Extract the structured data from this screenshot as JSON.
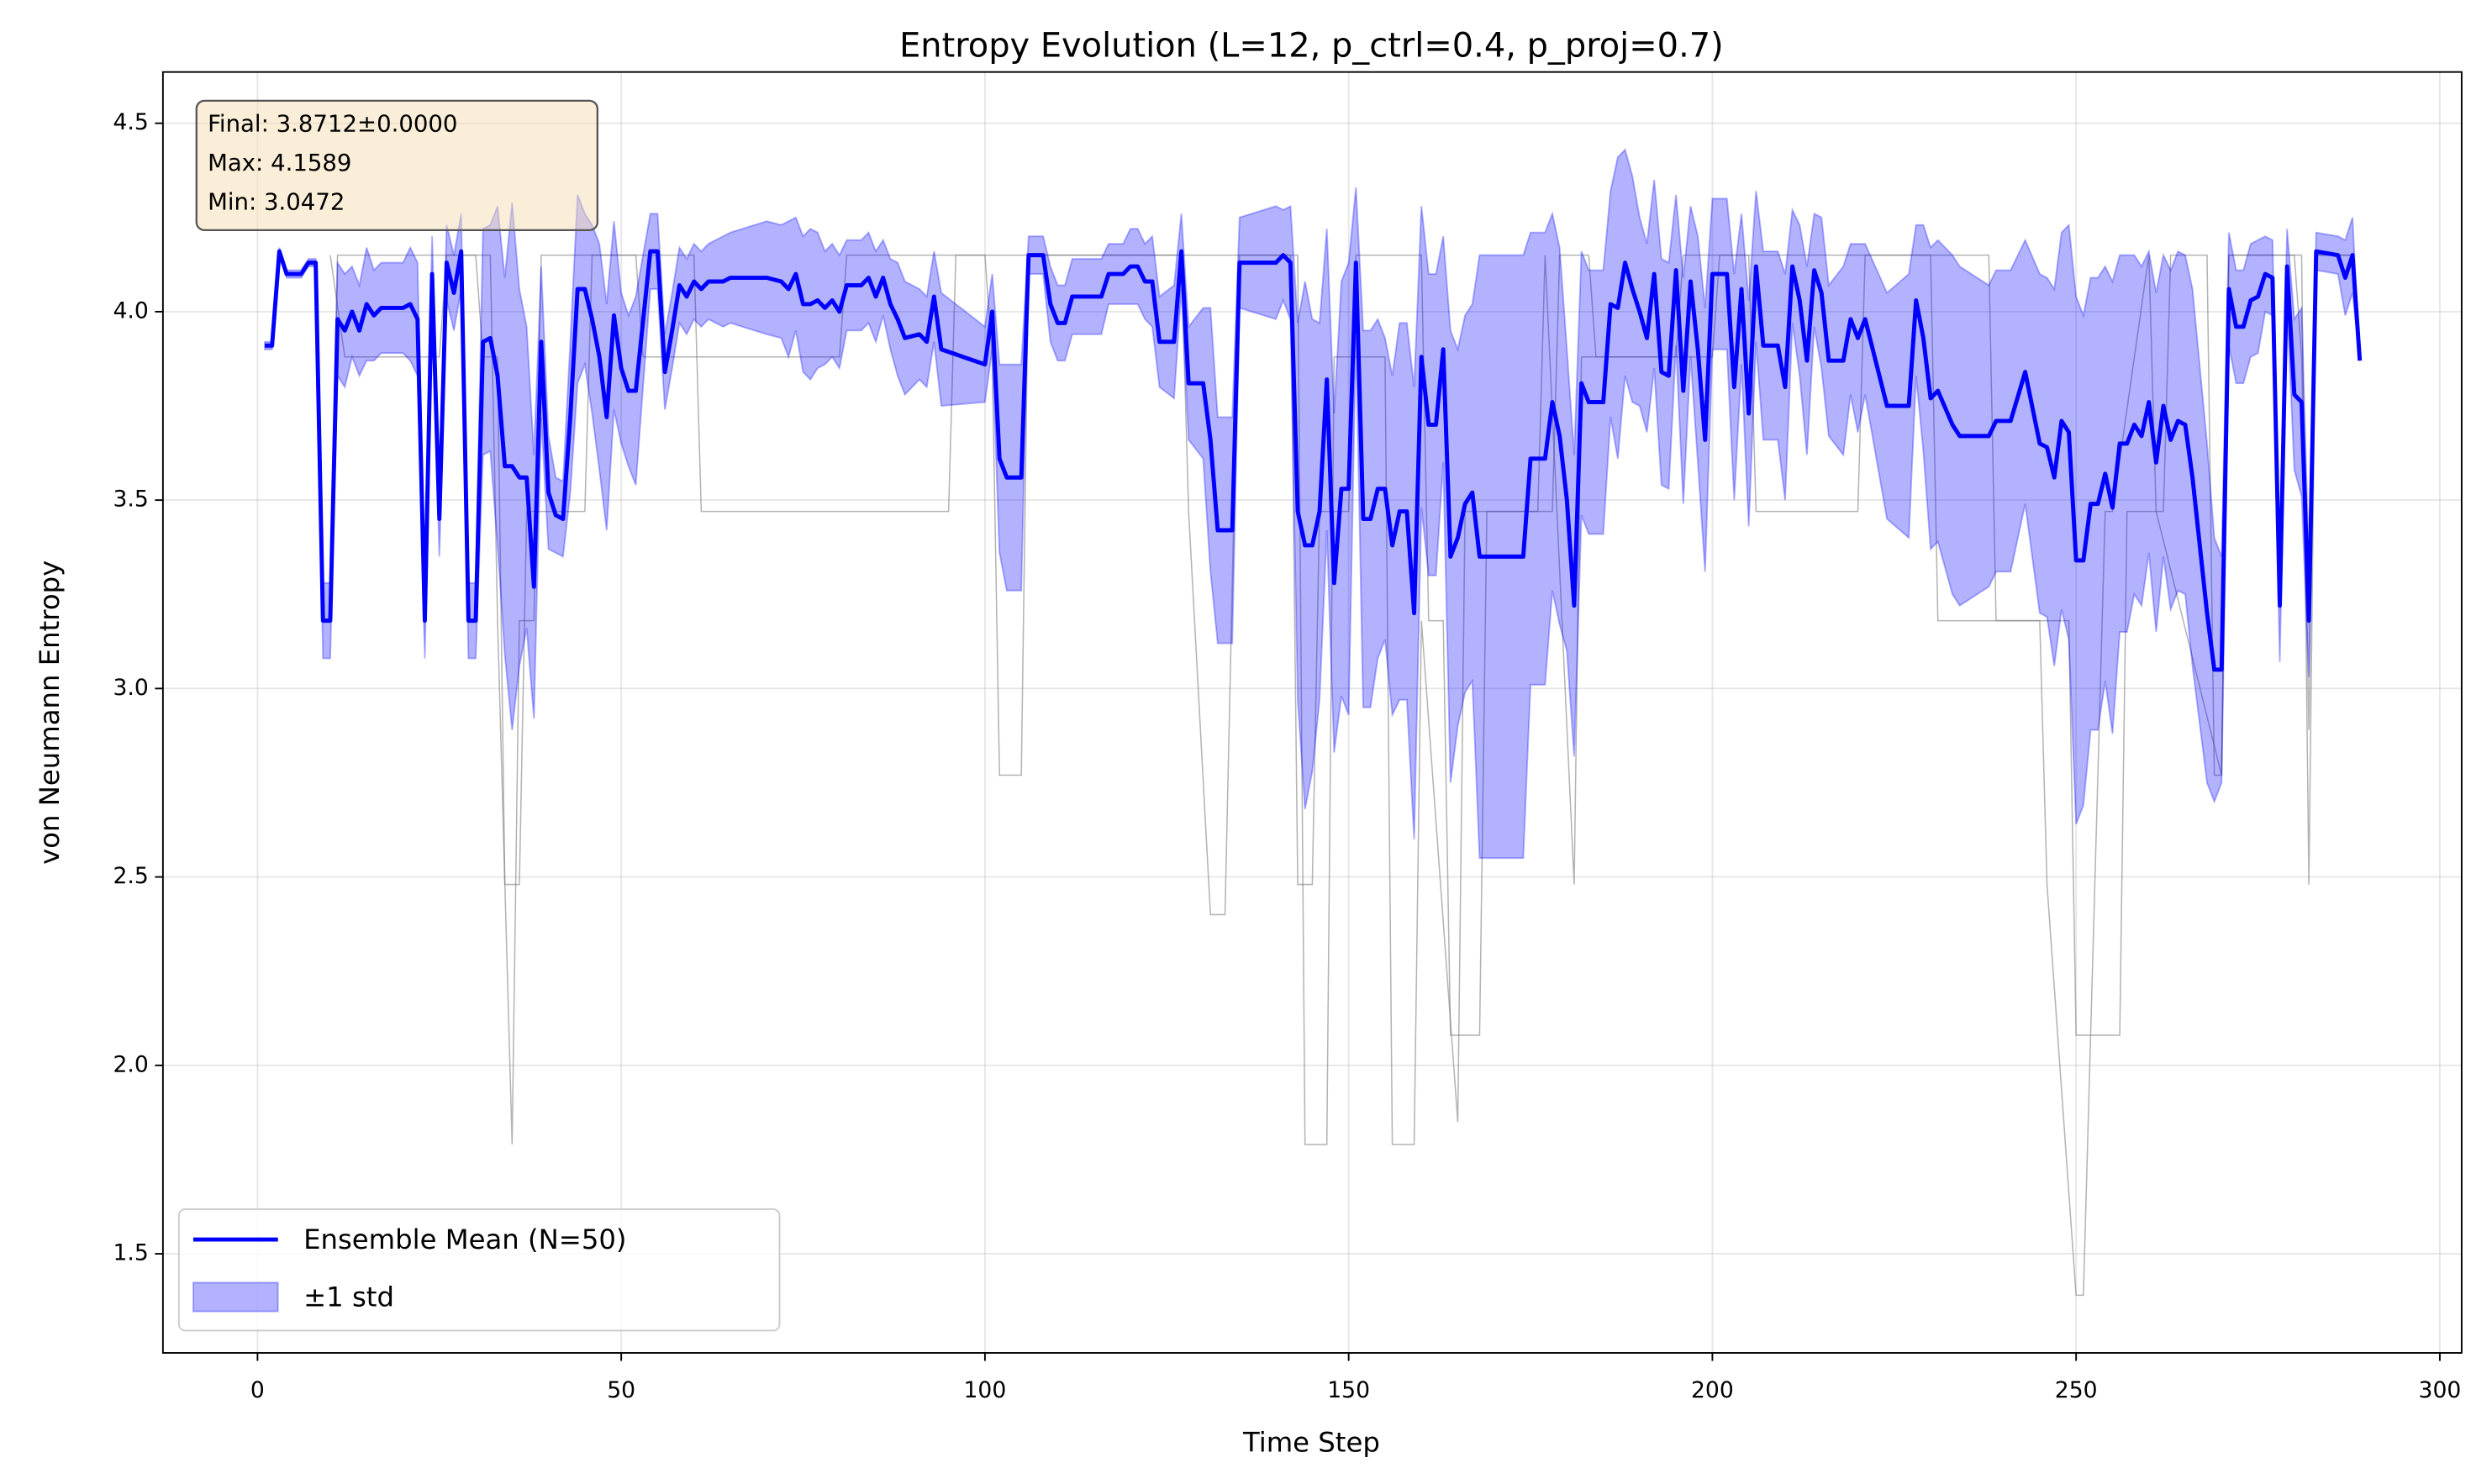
{
  "chart_data": {
    "type": "line",
    "title": "Entropy Evolution (L=12, p_ctrl=0.4, p_proj=0.7)",
    "xlabel": "Time Step",
    "ylabel": "von Neumann Entropy",
    "annotation": [
      "Final: 3.8712±0.0000",
      "Max: 4.1589",
      "Min: 3.0472"
    ],
    "legend": "lower left",
    "grid": true,
    "xlim": [
      -13,
      303
    ],
    "ylim": [
      1.237,
      4.636
    ],
    "xticks": [
      0,
      50,
      100,
      150,
      200,
      250,
      300
    ],
    "yticks": [
      1.5,
      {
        "value": 2,
        "label": "2.0"
      },
      2.5,
      {
        "value": 3,
        "label": "3.0"
      },
      3.5,
      {
        "value": 4,
        "label": "4.0"
      },
      4.5
    ],
    "x": [
      1,
      2,
      3,
      4,
      6,
      7,
      8,
      9,
      10,
      11,
      12,
      13,
      14,
      15,
      16,
      17,
      20,
      21,
      22,
      23,
      24,
      25,
      26,
      27,
      28,
      29,
      30,
      31,
      32,
      33,
      34,
      35,
      36,
      37,
      38,
      39,
      40,
      41,
      42,
      43,
      44,
      45,
      46,
      47,
      48,
      49,
      50,
      51,
      52,
      54,
      55,
      56,
      57,
      58,
      59,
      60,
      61,
      62,
      64,
      65,
      70,
      72,
      73,
      74,
      75,
      76,
      77,
      78,
      79,
      80,
      81,
      83,
      84,
      85,
      86,
      87,
      88,
      89,
      91,
      92,
      93,
      94,
      100,
      101,
      102,
      103,
      105,
      106,
      108,
      109,
      110,
      111,
      112,
      116,
      117,
      119,
      120,
      121,
      122,
      123,
      124,
      126,
      127,
      128,
      130,
      131,
      132,
      134,
      135,
      140,
      141,
      142,
      143,
      144,
      145,
      146,
      147,
      148,
      149,
      150,
      151,
      152,
      153,
      154,
      155,
      156,
      157,
      158,
      159,
      160,
      161,
      162,
      163,
      164,
      165,
      166,
      167,
      168,
      174,
      175,
      177,
      178,
      179,
      180,
      181,
      182,
      183,
      185,
      186,
      187,
      188,
      189,
      190,
      191,
      192,
      193,
      194,
      195,
      196,
      197,
      198,
      199,
      200,
      202,
      203,
      204,
      205,
      206,
      207,
      209,
      210,
      211,
      212,
      213,
      214,
      215,
      216,
      218,
      219,
      220,
      221,
      224,
      227,
      228,
      229,
      230,
      231,
      233,
      234,
      238,
      239,
      241,
      243,
      245,
      246,
      247,
      248,
      249,
      250,
      251,
      252,
      253,
      254,
      255,
      256,
      257,
      258,
      259,
      260,
      261,
      262,
      263,
      264,
      265,
      266,
      268,
      269,
      270,
      271,
      272,
      273,
      274,
      275,
      276,
      277,
      278,
      279,
      280,
      281,
      282,
      283,
      286,
      287,
      288,
      289
    ],
    "series": [
      {
        "name": "Ensemble Mean (N=50)",
        "color": "#0000ff",
        "values": [
          3.91,
          3.91,
          4.16,
          4.1,
          4.1,
          4.13,
          4.13,
          3.18,
          3.18,
          3.98,
          3.95,
          4.0,
          3.95,
          4.02,
          3.99,
          4.01,
          4.01,
          4.02,
          3.98,
          3.18,
          4.1,
          3.45,
          4.13,
          4.05,
          4.16,
          3.18,
          3.18,
          3.92,
          3.93,
          3.83,
          3.59,
          3.59,
          3.56,
          3.56,
          3.27,
          3.92,
          3.52,
          3.46,
          3.45,
          3.72,
          4.06,
          4.06,
          3.98,
          3.88,
          3.72,
          3.99,
          3.85,
          3.79,
          3.79,
          4.16,
          4.16,
          3.84,
          3.95,
          4.07,
          4.04,
          4.08,
          4.06,
          4.08,
          4.08,
          4.09,
          4.09,
          4.08,
          4.06,
          4.1,
          4.02,
          4.02,
          4.03,
          4.01,
          4.03,
          4.0,
          4.07,
          4.07,
          4.09,
          4.04,
          4.09,
          4.02,
          3.98,
          3.93,
          3.94,
          3.92,
          4.04,
          3.9,
          3.86,
          4.0,
          3.61,
          3.56,
          3.56,
          4.15,
          4.15,
          4.02,
          3.97,
          3.97,
          4.04,
          4.04,
          4.1,
          4.1,
          4.12,
          4.12,
          4.08,
          4.08,
          3.92,
          3.92,
          4.16,
          3.81,
          3.81,
          3.66,
          3.42,
          3.42,
          4.13,
          4.13,
          4.15,
          4.13,
          3.47,
          3.38,
          3.38,
          3.47,
          3.82,
          3.28,
          3.53,
          3.53,
          4.13,
          3.45,
          3.45,
          3.53,
          3.53,
          3.38,
          3.47,
          3.47,
          3.2,
          3.88,
          3.7,
          3.7,
          3.9,
          3.35,
          3.4,
          3.49,
          3.52,
          3.35,
          3.35,
          3.61,
          3.61,
          3.76,
          3.67,
          3.5,
          3.22,
          3.81,
          3.76,
          3.76,
          4.02,
          4.01,
          4.13,
          4.06,
          4.0,
          3.93,
          4.1,
          3.84,
          3.83,
          4.11,
          3.79,
          4.08,
          3.9,
          3.66,
          4.1,
          4.1,
          3.8,
          4.06,
          3.73,
          4.12,
          3.91,
          3.91,
          3.8,
          4.12,
          4.03,
          3.87,
          4.11,
          4.05,
          3.87,
          3.87,
          3.98,
          3.93,
          3.98,
          3.75,
          3.75,
          4.03,
          3.93,
          3.77,
          3.79,
          3.7,
          3.67,
          3.67,
          3.71,
          3.71,
          3.84,
          3.65,
          3.64,
          3.56,
          3.71,
          3.68,
          3.34,
          3.34,
          3.49,
          3.49,
          3.57,
          3.48,
          3.65,
          3.65,
          3.7,
          3.67,
          3.76,
          3.6,
          3.75,
          3.66,
          3.71,
          3.7,
          3.56,
          3.2,
          3.05,
          3.05,
          4.06,
          3.96,
          3.96,
          4.03,
          4.04,
          4.1,
          4.09,
          3.22,
          4.12,
          3.78,
          3.76,
          3.18,
          4.16,
          4.15,
          4.09,
          4.15,
          3.87
        ]
      },
      {
        "name": "±1 std",
        "color": "#0000ff",
        "values": [
          0.01,
          0.01,
          0.01,
          0.01,
          0.01,
          0.01,
          0.01,
          0.1,
          0.1,
          0.15,
          0.15,
          0.12,
          0.12,
          0.15,
          0.12,
          0.12,
          0.12,
          0.15,
          0.15,
          0.1,
          0.1,
          0.1,
          0.1,
          0.1,
          0.1,
          0.1,
          0.1,
          0.3,
          0.3,
          0.45,
          0.5,
          0.7,
          0.5,
          0.4,
          0.35,
          0.2,
          0.15,
          0.1,
          0.1,
          0.2,
          0.25,
          0.2,
          0.25,
          0.3,
          0.3,
          0.25,
          0.2,
          0.2,
          0.25,
          0.1,
          0.1,
          0.1,
          0.1,
          0.1,
          0.1,
          0.1,
          0.1,
          0.1,
          0.12,
          0.12,
          0.15,
          0.15,
          0.18,
          0.15,
          0.18,
          0.2,
          0.18,
          0.15,
          0.15,
          0.15,
          0.12,
          0.12,
          0.12,
          0.12,
          0.1,
          0.12,
          0.15,
          0.15,
          0.12,
          0.12,
          0.12,
          0.15,
          0.1,
          0.1,
          0.25,
          0.3,
          0.3,
          0.05,
          0.05,
          0.1,
          0.1,
          0.1,
          0.1,
          0.1,
          0.08,
          0.08,
          0.1,
          0.1,
          0.1,
          0.12,
          0.12,
          0.15,
          0.1,
          0.15,
          0.2,
          0.35,
          0.3,
          0.3,
          0.12,
          0.15,
          0.12,
          0.15,
          0.5,
          0.7,
          0.6,
          0.5,
          0.4,
          0.45,
          0.55,
          0.6,
          0.2,
          0.5,
          0.5,
          0.45,
          0.4,
          0.45,
          0.5,
          0.5,
          0.6,
          0.4,
          0.4,
          0.4,
          0.3,
          0.6,
          0.5,
          0.5,
          0.5,
          0.8,
          0.8,
          0.6,
          0.6,
          0.5,
          0.5,
          0.4,
          0.4,
          0.35,
          0.35,
          0.35,
          0.3,
          0.4,
          0.3,
          0.3,
          0.25,
          0.25,
          0.25,
          0.3,
          0.3,
          0.2,
          0.3,
          0.2,
          0.3,
          0.35,
          0.2,
          0.2,
          0.3,
          0.2,
          0.3,
          0.2,
          0.25,
          0.25,
          0.3,
          0.15,
          0.2,
          0.25,
          0.15,
          0.2,
          0.2,
          0.25,
          0.2,
          0.25,
          0.2,
          0.3,
          0.35,
          0.2,
          0.3,
          0.4,
          0.4,
          0.45,
          0.45,
          0.4,
          0.4,
          0.4,
          0.35,
          0.45,
          0.45,
          0.5,
          0.5,
          0.55,
          0.7,
          0.65,
          0.6,
          0.6,
          0.55,
          0.6,
          0.5,
          0.5,
          0.45,
          0.45,
          0.4,
          0.45,
          0.4,
          0.45,
          0.45,
          0.45,
          0.5,
          0.45,
          0.35,
          0.3,
          0.15,
          0.15,
          0.15,
          0.15,
          0.15,
          0.1,
          0.1,
          0.15,
          0.1,
          0.2,
          0.25,
          0.15,
          0.05,
          0.05,
          0.1,
          0.1,
          0
        ]
      }
    ],
    "trajectories": [
      {
        "color": "#808080",
        "x": [
          10,
          11,
          30,
          31,
          33,
          34,
          36,
          37,
          45,
          46,
          52,
          53,
          80,
          81,
          100,
          101,
          102,
          105,
          106,
          142,
          143,
          145,
          146,
          150,
          151,
          160,
          161,
          163,
          164,
          168,
          169,
          178,
          179,
          183,
          184,
          200,
          201,
          205,
          206,
          220,
          221,
          238,
          239,
          249,
          250,
          256,
          257,
          262,
          263,
          268,
          269,
          270,
          271,
          280,
          281,
          282,
          283,
          288
        ],
        "values": [
          3.18,
          4.15,
          4.15,
          3.88,
          3.88,
          2.48,
          2.48,
          3.47,
          3.47,
          4.15,
          4.15,
          3.88,
          3.88,
          4.15,
          4.15,
          3.88,
          2.77,
          2.77,
          4.15,
          4.15,
          2.48,
          2.48,
          3.47,
          3.47,
          4.15,
          4.15,
          3.18,
          3.18,
          2.08,
          2.08,
          3.47,
          3.47,
          4.15,
          4.15,
          3.88,
          3.88,
          4.15,
          4.15,
          3.47,
          3.47,
          4.15,
          4.15,
          3.18,
          3.18,
          2.08,
          2.08,
          3.47,
          3.47,
          4.15,
          4.15,
          2.77,
          2.77,
          4.15,
          4.15,
          3.88,
          2.89,
          4.15,
          4.15
        ]
      },
      {
        "color": "#808080",
        "x": [
          10,
          12,
          25,
          26,
          32,
          33,
          35,
          36,
          38,
          39,
          60,
          61,
          95,
          96,
          127,
          128,
          131,
          133,
          135,
          143,
          144,
          147,
          148,
          155,
          156,
          159,
          160,
          165,
          166,
          176,
          177,
          181,
          182,
          195,
          196,
          230,
          231,
          245,
          246,
          250,
          251,
          254,
          255,
          260,
          261,
          270,
          271,
          281,
          282,
          283,
          288
        ],
        "values": [
          4.15,
          3.88,
          3.88,
          4.15,
          4.15,
          3.18,
          1.79,
          3.18,
          3.18,
          4.15,
          4.15,
          3.47,
          3.47,
          4.15,
          4.15,
          3.47,
          2.4,
          2.4,
          4.15,
          4.15,
          1.79,
          1.79,
          3.88,
          3.88,
          1.79,
          1.79,
          3.18,
          1.85,
          3.47,
          3.47,
          4.15,
          2.48,
          3.88,
          3.88,
          4.15,
          4.15,
          3.18,
          3.18,
          2.48,
          1.39,
          1.39,
          3.47,
          3.47,
          4.15,
          3.47,
          2.77,
          4.15,
          4.15,
          2.48,
          4.15,
          4.15
        ]
      }
    ]
  }
}
